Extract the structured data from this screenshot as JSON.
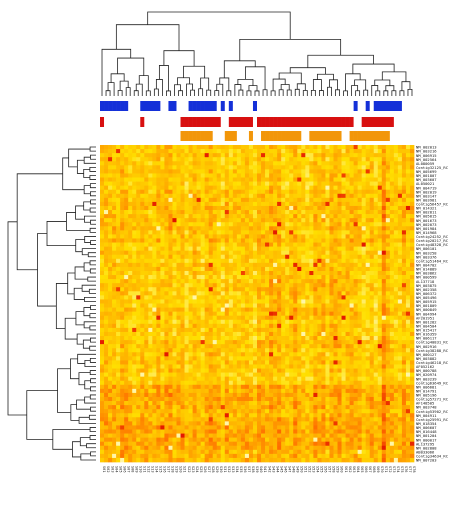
{
  "chart_data": {
    "type": "heatmap",
    "title": "",
    "xlabel": "",
    "ylabel": "",
    "n_columns": 78,
    "n_rows": 78,
    "row_labels": [
      "NM_002013",
      "NM_003216",
      "NM_006915",
      "NM_002564",
      "AL080059",
      "Contig32125_RC",
      "NM_005699",
      "NM_001807",
      "NM_003607",
      "AL050021",
      "NM_004719",
      "NM_002019",
      "NM_003147",
      "NM_003981",
      "Contig56457_RC",
      "NM_014321",
      "NM_002811",
      "NM_005815",
      "NM_001673",
      "NM_002073",
      "NM_001984",
      "NM_014968",
      "Contig24252_RC",
      "Contig20217_RC",
      "Contig48328_RC",
      "NM_006101",
      "NM_003258",
      "NM_003376",
      "Contig51464_RC",
      "NM_004702",
      "NM_014889",
      "NM_003862",
      "NM_000599",
      "AL137718",
      "NM_003875",
      "NM_002358",
      "NM_006372",
      "NM_005496",
      "NM_005915",
      "NM_001809",
      "NM_000849",
      "NM_004994",
      "AF201951",
      "NM_001282",
      "NM_004504",
      "NM_015417",
      "NM_016359",
      "NM_006117",
      "Contig40831_RC",
      "NM_002916",
      "Contig38288_RC",
      "NM_000127",
      "NM_003882",
      "Contig46218_RC",
      "AF052162",
      "NM_000788",
      "NM_020974",
      "NM_003239",
      "Contig63649_RC",
      "NM_006681",
      "NM_014791",
      "NM_005196",
      "Contig57271_RC",
      "AF148505",
      "NM_003748",
      "Contig53902_RC",
      "NM_004911",
      "Contig25991_RC",
      "NM_018354",
      "NM_006607",
      "NM_016448",
      "NM_001204",
      "NM_000017",
      "AL137295",
      "NM_002808",
      "AB033066",
      "Contig34634_RC",
      "NM_007203"
    ],
    "column_labels": [
      "S01",
      "S02",
      "S03",
      "S04",
      "S05",
      "S06",
      "S07",
      "S08",
      "S09",
      "S10",
      "S11",
      "S12",
      "S13",
      "S14",
      "S15",
      "S16",
      "S17",
      "S18",
      "S19",
      "S20",
      "S21",
      "S22",
      "S23",
      "S24",
      "S25",
      "S26",
      "S27",
      "S28",
      "S29",
      "S30",
      "S31",
      "S32",
      "S33",
      "S34",
      "S35",
      "S36",
      "S37",
      "S38",
      "S39",
      "S40",
      "S41",
      "S42",
      "S43",
      "S44",
      "S45",
      "S46",
      "S47",
      "S48",
      "S49",
      "S50",
      "S51",
      "S52",
      "S53",
      "S54",
      "S55",
      "S56",
      "S57",
      "S58",
      "S59",
      "S60",
      "S61",
      "S62",
      "S63",
      "S64",
      "S65",
      "S66",
      "S67",
      "S68",
      "S69",
      "S70",
      "S71",
      "S72",
      "S73",
      "S74",
      "S75",
      "S76",
      "S77",
      "S78"
    ],
    "annotation_tracks": [
      {
        "color": "#1430d8",
        "values": [
          1,
          1,
          1,
          1,
          1,
          1,
          1,
          0,
          0,
          0,
          1,
          1,
          1,
          1,
          1,
          0,
          0,
          1,
          1,
          0,
          0,
          0,
          1,
          1,
          1,
          1,
          1,
          1,
          1,
          0,
          1,
          0,
          1,
          0,
          0,
          0,
          0,
          0,
          1,
          0,
          0,
          0,
          0,
          0,
          0,
          0,
          0,
          0,
          0,
          0,
          0,
          0,
          0,
          0,
          0,
          0,
          0,
          0,
          0,
          0,
          0,
          0,
          0,
          1,
          0,
          0,
          1,
          0,
          1,
          1,
          1,
          1,
          1,
          1,
          1,
          0,
          0,
          0
        ]
      },
      {
        "color": "#d81010",
        "values": [
          1,
          0,
          0,
          0,
          0,
          0,
          0,
          0,
          0,
          0,
          1,
          0,
          0,
          0,
          0,
          0,
          0,
          0,
          0,
          0,
          1,
          1,
          1,
          1,
          1,
          1,
          1,
          1,
          1,
          1,
          0,
          0,
          1,
          1,
          1,
          1,
          1,
          1,
          0,
          1,
          1,
          1,
          1,
          1,
          1,
          1,
          1,
          1,
          1,
          1,
          1,
          1,
          1,
          1,
          1,
          1,
          1,
          1,
          1,
          1,
          1,
          1,
          1,
          0,
          0,
          1,
          1,
          1,
          1,
          1,
          1,
          1,
          1,
          0,
          0,
          0,
          0,
          0
        ]
      },
      {
        "color": "#f2960a",
        "values": [
          0,
          0,
          0,
          0,
          0,
          0,
          0,
          0,
          0,
          0,
          0,
          0,
          0,
          0,
          0,
          0,
          0,
          0,
          0,
          0,
          1,
          1,
          1,
          1,
          1,
          1,
          1,
          1,
          0,
          0,
          0,
          1,
          1,
          1,
          0,
          0,
          0,
          1,
          0,
          0,
          1,
          1,
          1,
          1,
          1,
          1,
          1,
          1,
          1,
          1,
          0,
          0,
          1,
          1,
          1,
          1,
          1,
          1,
          1,
          1,
          0,
          0,
          1,
          1,
          1,
          1,
          1,
          1,
          1,
          1,
          1,
          1,
          0,
          0,
          0,
          0,
          0,
          0
        ]
      }
    ],
    "color_scale": [
      "#fff6a8",
      "#ffe000",
      "#ffb000",
      "#ff6a00",
      "#e01000"
    ],
    "value_range": [
      0,
      1
    ],
    "cells_seed": 20240511,
    "column_dendrogram": true,
    "row_dendrogram": true,
    "legend": "none",
    "grid": false
  }
}
